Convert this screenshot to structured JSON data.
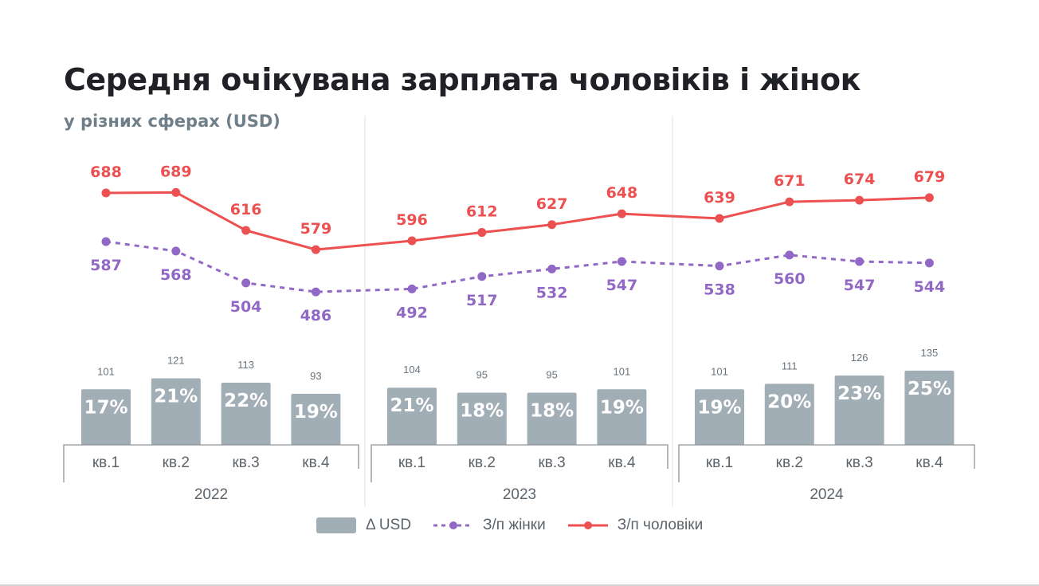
{
  "title": "Середня очікувана зарплата чоловіків і жінок",
  "subtitle": "у різних сферах (USD)",
  "colors": {
    "men": "#ec5050",
    "women": "#9168c5",
    "bars": "#a2aeb6",
    "bar_label": "#ffffff",
    "bar_value": "#6a737b",
    "axis": "#8b9399",
    "axis_text": "#5c646b",
    "separator": "#ececec"
  },
  "legend": [
    {
      "key": "delta",
      "label": "Δ USD"
    },
    {
      "key": "women",
      "label": "З/п жінки"
    },
    {
      "key": "men",
      "label": "З/п чоловіки"
    }
  ],
  "chart_data": {
    "type": "line+bar",
    "title": "Середня очікувана зарплата чоловіків і жінок",
    "subtitle": "у різних сферах (USD)",
    "groups": [
      {
        "label": "2022",
        "categories": [
          "кв.1",
          "кв.2",
          "кв.3",
          "кв.4"
        ]
      },
      {
        "label": "2023",
        "categories": [
          "кв.1",
          "кв.2",
          "кв.3",
          "кв.4"
        ]
      },
      {
        "label": "2024",
        "categories": [
          "кв.1",
          "кв.2",
          "кв.3",
          "кв.4"
        ]
      }
    ],
    "series": [
      {
        "name": "З/п чоловіки",
        "key": "men",
        "type": "line",
        "style": "solid",
        "values": [
          688,
          689,
          616,
          579,
          596,
          612,
          627,
          648,
          639,
          671,
          674,
          679
        ]
      },
      {
        "name": "З/п жінки",
        "key": "women",
        "type": "line",
        "style": "dashed",
        "values": [
          587,
          568,
          504,
          486,
          492,
          517,
          532,
          547,
          538,
          560,
          547,
          544
        ]
      },
      {
        "name": "Δ USD",
        "key": "delta",
        "type": "bar",
        "values": [
          101,
          121,
          113,
          93,
          104,
          95,
          95,
          101,
          101,
          111,
          126,
          135
        ],
        "percent_labels": [
          "17%",
          "21%",
          "22%",
          "19%",
          "21%",
          "18%",
          "18%",
          "19%",
          "19%",
          "20%",
          "23%",
          "25%"
        ]
      }
    ],
    "legend_position": "bottom-center",
    "grid": false
  }
}
